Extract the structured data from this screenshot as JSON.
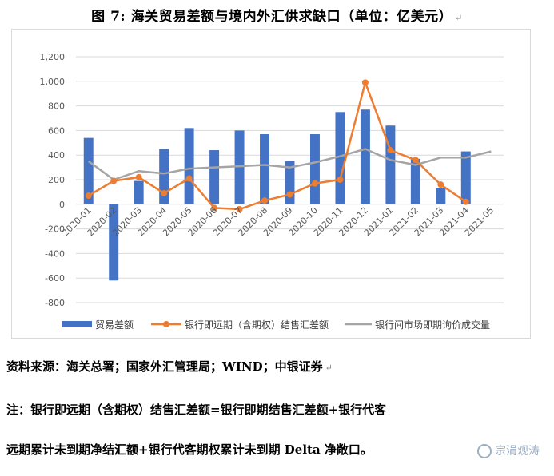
{
  "figure_title": "图 7: 海关贸易差额与境内外汇供求缺口（单位：亿美元）",
  "pilcrow": "↵",
  "source_text": "资料来源：海关总署；国家外汇管理局；WIND；中银证券",
  "note_line1": "注：银行即远期（含期权）结售汇差额=银行即期结售汇差额+银行代客",
  "note_line2": "远期累计未到期净结汇额+银行代客期权累计未到期 Delta 净敞口。",
  "watermark": "宗涓观涛",
  "colors": {
    "bar": "#4472c4",
    "line1": "#ed7d31",
    "line2": "#a5a5a5",
    "grid": "#d9d9d9",
    "axis_text": "#595959"
  },
  "chart_data": {
    "type": "bar",
    "categories": [
      "2020-01",
      "2020-02",
      "2020-03",
      "2020-04",
      "2020-05",
      "2020-06",
      "2020-07",
      "2020-08",
      "2020-09",
      "2020-10",
      "2020-11",
      "2020-12",
      "2021-01",
      "2021-02",
      "2021-03",
      "2021-04",
      "2021-05"
    ],
    "ylim": [
      -800,
      1200
    ],
    "yticks": [
      -800,
      -600,
      -400,
      -200,
      0,
      200,
      400,
      600,
      800,
      1000,
      1200
    ],
    "ytick_labels": [
      "-800",
      "-600",
      "-400",
      "-200",
      "0",
      "200",
      "400",
      "600",
      "800",
      "1,000",
      "1,200"
    ],
    "grid": true,
    "legend_position": "bottom",
    "series": [
      {
        "name": "贸易差额",
        "type": "bar",
        "values": [
          540,
          -620,
          190,
          450,
          620,
          440,
          600,
          570,
          350,
          570,
          750,
          770,
          640,
          370,
          130,
          430,
          null
        ]
      },
      {
        "name": "银行即远期（含期权）结售汇差额",
        "type": "line",
        "values": [
          70,
          190,
          220,
          90,
          210,
          -30,
          -40,
          30,
          80,
          170,
          200,
          990,
          440,
          360,
          160,
          20,
          null
        ]
      },
      {
        "name": "银行间市场即期询价成交量",
        "type": "line",
        "values": [
          350,
          200,
          270,
          250,
          290,
          300,
          310,
          320,
          300,
          340,
          390,
          450,
          360,
          320,
          380,
          380,
          430
        ]
      }
    ]
  }
}
